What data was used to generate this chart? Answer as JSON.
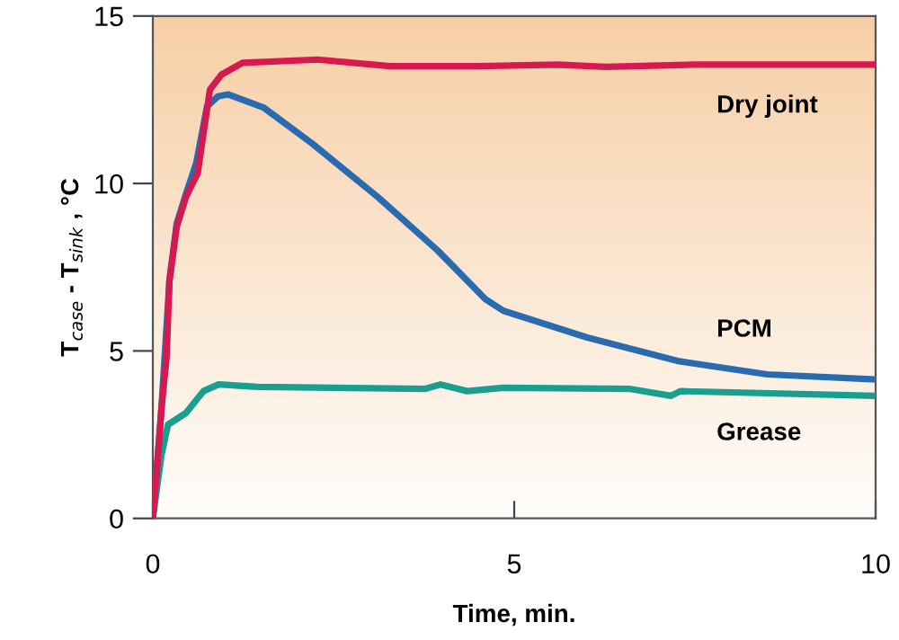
{
  "chart_data": {
    "type": "line",
    "xlabel": "Time, min.",
    "ylabel": "T$_{case}$ - T$_{sink}$ , °C",
    "xlim": [
      0,
      10
    ],
    "xticks": [
      0,
      5,
      10
    ],
    "ylim": [
      0,
      15
    ],
    "yticks": [
      0,
      5,
      10,
      15
    ],
    "grid": false,
    "legend": false,
    "marker": "none",
    "line_style": "solid",
    "series": [
      {
        "name": "Dry joint",
        "color": "#d6194f",
        "x": [
          0,
          0.06,
          0.12,
          0.19,
          0.23,
          0.33,
          0.46,
          0.62,
          0.79,
          0.95,
          1.24,
          2.28,
          3.28,
          4.5,
          5.6,
          6.26,
          7.5,
          10
        ],
        "values": [
          0,
          1.55,
          3.3,
          4.8,
          7.1,
          8.7,
          9.6,
          10.3,
          12.8,
          13.25,
          13.6,
          13.7,
          13.5,
          13.5,
          13.55,
          13.48,
          13.55,
          13.55
        ]
      },
      {
        "name": "PCM",
        "color": "#2a6aae",
        "x": [
          0,
          0.12,
          0.23,
          0.33,
          0.46,
          0.6,
          0.75,
          0.9,
          1.04,
          1.53,
          2.2,
          3.11,
          3.94,
          4.6,
          4.85,
          6.01,
          7.26,
          8.5,
          10
        ],
        "values": [
          0,
          3.3,
          7.1,
          8.8,
          9.7,
          10.6,
          12.3,
          12.6,
          12.66,
          12.27,
          11.2,
          9.6,
          8.0,
          6.55,
          6.2,
          5.4,
          4.7,
          4.3,
          4.15
        ]
      },
      {
        "name": "Grease",
        "color": "#1a9e8f",
        "x": [
          0,
          0.12,
          0.21,
          0.46,
          0.7,
          0.91,
          1.45,
          3.77,
          3.98,
          4.35,
          4.85,
          6.59,
          7.17,
          7.3,
          10
        ],
        "values": [
          0,
          1.9,
          2.8,
          3.15,
          3.8,
          4.0,
          3.93,
          3.87,
          4.0,
          3.8,
          3.9,
          3.87,
          3.66,
          3.8,
          3.66
        ]
      }
    ]
  }
}
